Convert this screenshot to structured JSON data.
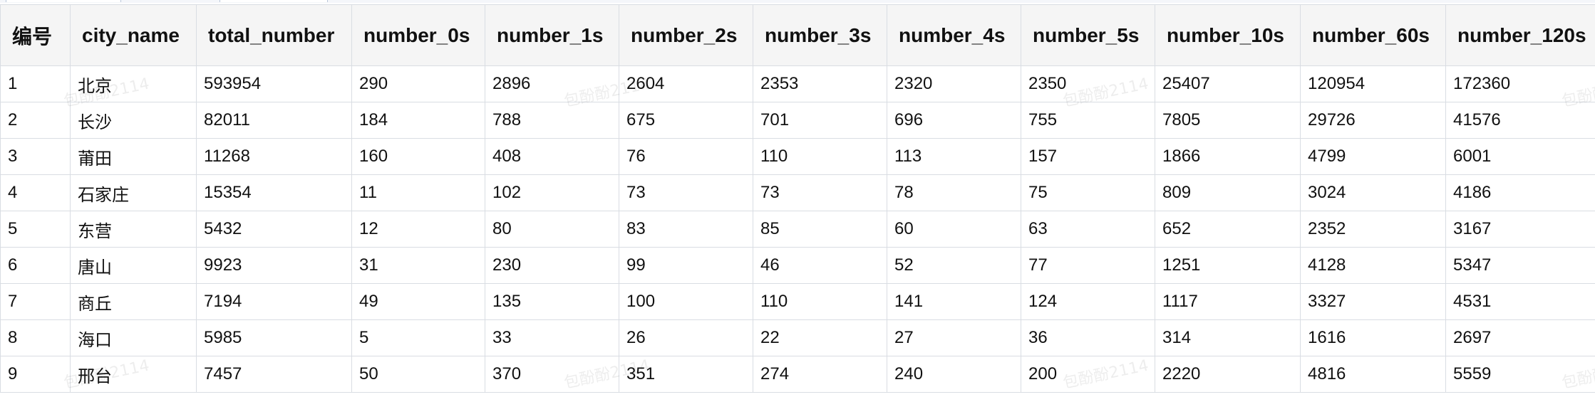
{
  "columns": [
    "编号",
    "city_name",
    "total_number",
    "number_0s",
    "number_1s",
    "number_2s",
    "number_3s",
    "number_4s",
    "number_5s",
    "number_10s",
    "number_60s",
    "number_120s"
  ],
  "rows": [
    [
      "1",
      "北京",
      "593954",
      "290",
      "2896",
      "2604",
      "2353",
      "2320",
      "2350",
      "25407",
      "120954",
      "172360"
    ],
    [
      "2",
      "长沙",
      "82011",
      "184",
      "788",
      "675",
      "701",
      "696",
      "755",
      "7805",
      "29726",
      "41576"
    ],
    [
      "3",
      "莆田",
      "11268",
      "160",
      "408",
      "76",
      "110",
      "113",
      "157",
      "1866",
      "4799",
      "6001"
    ],
    [
      "4",
      "石家庄",
      "15354",
      "11",
      "102",
      "73",
      "73",
      "78",
      "75",
      "809",
      "3024",
      "4186"
    ],
    [
      "5",
      "东营",
      "5432",
      "12",
      "80",
      "83",
      "85",
      "60",
      "63",
      "652",
      "2352",
      "3167"
    ],
    [
      "6",
      "唐山",
      "9923",
      "31",
      "230",
      "99",
      "46",
      "52",
      "77",
      "1251",
      "4128",
      "5347"
    ],
    [
      "7",
      "商丘",
      "7194",
      "49",
      "135",
      "100",
      "110",
      "141",
      "124",
      "1117",
      "3327",
      "4531"
    ],
    [
      "8",
      "海口",
      "5985",
      "5",
      "33",
      "26",
      "22",
      "27",
      "36",
      "314",
      "1616",
      "2697"
    ],
    [
      "9",
      "邢台",
      "7457",
      "50",
      "370",
      "351",
      "274",
      "240",
      "200",
      "2220",
      "4816",
      "5559"
    ]
  ],
  "watermark_text": "包酚酚2114",
  "colors": {
    "grid_border": "#d9dde3",
    "header_bg": "#f5f5f5"
  }
}
